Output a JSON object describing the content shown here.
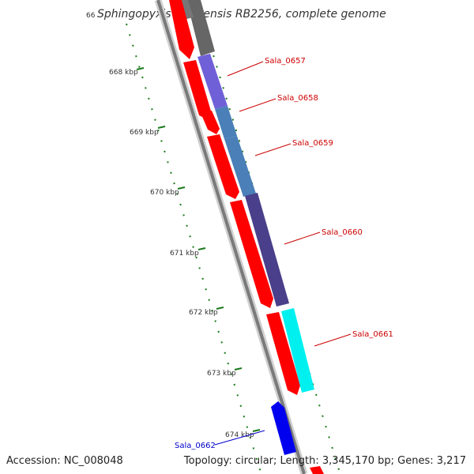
{
  "title": "Sphingopyxis alaskensis RB2256, complete genome",
  "title_clip": "66",
  "accession": "Accession: NC_008048",
  "topology": "Topology: circular; Length: 3,345,170 bp; Genes: 3,217",
  "colors": {
    "forward_cds": "#ff0000",
    "backbone": "#888888",
    "tick_dots": "#1a7a1a",
    "gene_label_red": "#cc0000",
    "gene_label_blue": "#0000cc"
  },
  "ticks": [
    {
      "label": "668 kbp"
    },
    {
      "label": "669 kbp"
    },
    {
      "label": "670 kbp"
    },
    {
      "label": "671 kbp"
    },
    {
      "label": "672 kbp"
    },
    {
      "label": "673 kbp"
    },
    {
      "label": "674 kbp"
    }
  ],
  "genes": [
    {
      "name": "Sala_0657",
      "color": "#7060d8"
    },
    {
      "name": "Sala_0658",
      "color": "#4a7fb8"
    },
    {
      "name": "Sala_0659",
      "color": "#4a7fb8"
    },
    {
      "name": "Sala_0660",
      "color": "#4a3f8a"
    },
    {
      "name": "Sala_0661",
      "color": "#00f0f0"
    },
    {
      "name": "Sala_0662",
      "color": "#0000ee"
    }
  ]
}
